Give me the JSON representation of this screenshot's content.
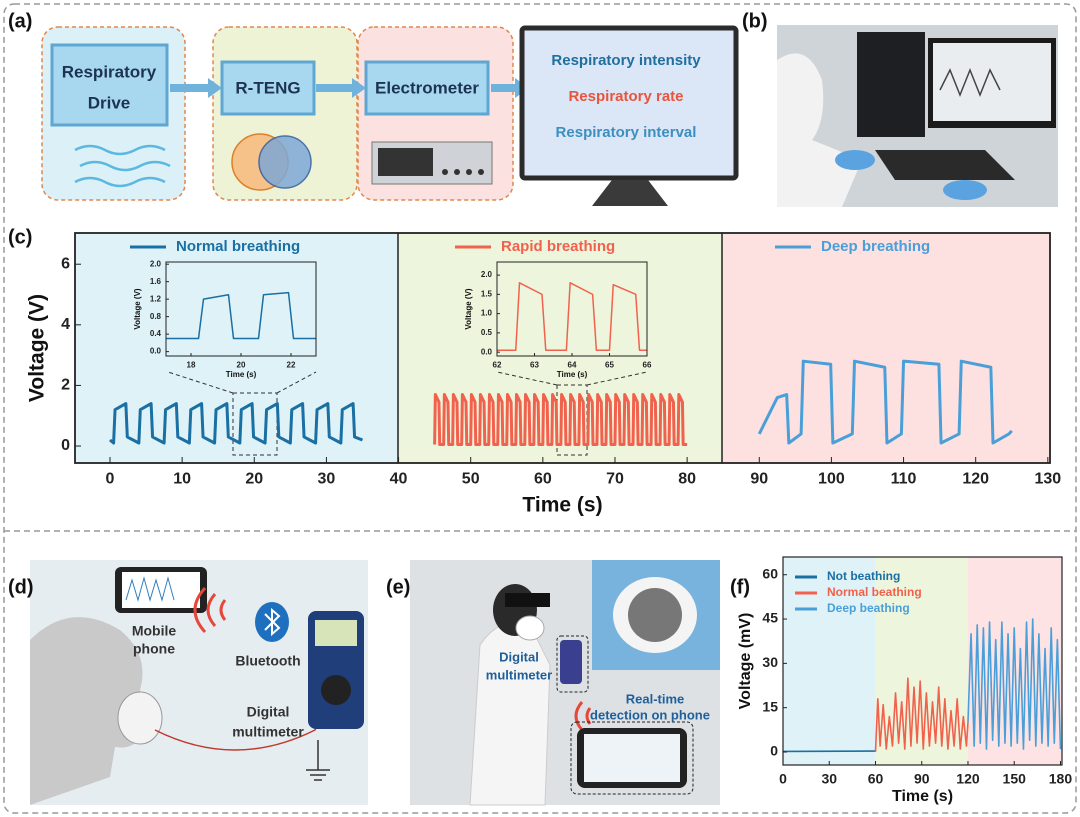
{
  "panels": {
    "labels": [
      "(a)",
      "(b)",
      "(c)",
      "(d)",
      "(e)",
      "(f)"
    ]
  },
  "flow": {
    "drive": [
      "Respiratory",
      "Drive"
    ],
    "teng": "R-TENG",
    "electrometer": "Electrometer",
    "outputs": [
      "Respiratory intensity",
      "Respiratory rate",
      "Respiratory interval"
    ]
  },
  "setup_d": {
    "phone": [
      "Mobile",
      "phone"
    ],
    "bluetooth": "Bluetooth",
    "multimeter": [
      "Digital",
      "multimeter"
    ]
  },
  "photo_e": {
    "multimeter": [
      "Digital",
      "multimeter"
    ],
    "detection": [
      "Real-time",
      "detection on phone"
    ]
  },
  "chart_data": [
    {
      "type": "line",
      "xlabel": "Time (s)",
      "ylabel": "Voltage (V)",
      "xlim": [
        -4.85,
        130.3
      ],
      "ylim": [
        -0.56,
        7.03
      ],
      "xticks": [
        0,
        10,
        20,
        30,
        40,
        50,
        60,
        70,
        80,
        90,
        100,
        110,
        120,
        130
      ],
      "yticks": [
        0,
        2,
        4,
        6
      ],
      "series": [
        {
          "name": "Normal breathing",
          "color": "#1a6fa3",
          "x": [
            0,
            0.5,
            0.7,
            2.2,
            2.4,
            4,
            4.2,
            5.7,
            5.9,
            7.5,
            7.7,
            9.2,
            9.4,
            11,
            11.2,
            12.7,
            12.9,
            14.5,
            14.7,
            16.2,
            16.4,
            18,
            18.2,
            19.7,
            19.9,
            21.5,
            21.7,
            23.2,
            23.4,
            25,
            25.2,
            26.7,
            26.9,
            28.5,
            28.7,
            30.2,
            30.4,
            32,
            32.2,
            33.7,
            33.9,
            35
          ],
          "values": [
            0.2,
            0.1,
            1.2,
            1.4,
            0.3,
            0.1,
            1.2,
            1.4,
            0.3,
            0.1,
            1.2,
            1.4,
            0.3,
            0.1,
            1.2,
            1.4,
            0.3,
            0.1,
            1.2,
            1.4,
            0.3,
            0.1,
            1.2,
            1.4,
            0.3,
            0.1,
            1.2,
            1.4,
            0.3,
            0.1,
            1.2,
            1.4,
            0.3,
            0.1,
            1.2,
            1.4,
            0.3,
            0.1,
            1.2,
            1.4,
            0.3,
            0.2
          ]
        },
        {
          "name": "Rapid breathing",
          "color": "#f0624d",
          "x": [
            45,
            45.1,
            45.6,
            45.7,
            46.25,
            46.35,
            46.85,
            46.95,
            47.5,
            47.6,
            48.1,
            48.2,
            48.75,
            48.85,
            49.35,
            49.45,
            50,
            50.1,
            50.6,
            50.7,
            51.25,
            51.35,
            51.85,
            51.95,
            52.5,
            52.6,
            53.1,
            53.2,
            53.75,
            53.85,
            54.35,
            54.45,
            55,
            55.1,
            55.6,
            55.7,
            56.25,
            56.35,
            56.85,
            56.95,
            57.5,
            57.6,
            58.1,
            58.2,
            58.75,
            58.85,
            59.35,
            59.45,
            60,
            60.1,
            60.6,
            60.7,
            61.25,
            61.35,
            61.85,
            61.95,
            62.5,
            62.6,
            63.1,
            63.2,
            63.75,
            63.85,
            64.35,
            64.45,
            65,
            65.1,
            65.6,
            65.7,
            66.25,
            66.35,
            66.85,
            66.95,
            67.5,
            67.6,
            68.1,
            68.2,
            68.75,
            68.85,
            69.35,
            69.45,
            70,
            70.1,
            70.6,
            70.7,
            71.25,
            71.35,
            71.85,
            71.95,
            72.5,
            72.6,
            73.1,
            73.2,
            73.75,
            73.85,
            74.35,
            74.45,
            75,
            75.1,
            75.6,
            75.7,
            76.25,
            76.35,
            76.85,
            76.95,
            77.5,
            77.6,
            78.1,
            78.2,
            78.75,
            78.85,
            79.35,
            79.45,
            80
          ],
          "values": [
            0.05,
            1.7,
            1.45,
            0.05,
            0.05,
            1.7,
            1.45,
            0.05,
            0.05,
            1.7,
            1.45,
            0.05,
            0.05,
            1.7,
            1.45,
            0.05,
            0.05,
            1.7,
            1.45,
            0.05,
            0.05,
            1.7,
            1.45,
            0.05,
            0.05,
            1.7,
            1.45,
            0.05,
            0.05,
            1.7,
            1.45,
            0.05,
            0.05,
            1.7,
            1.45,
            0.05,
            0.05,
            1.7,
            1.45,
            0.05,
            0.05,
            1.7,
            1.45,
            0.05,
            0.05,
            1.7,
            1.45,
            0.05,
            0.05,
            1.7,
            1.45,
            0.05,
            0.05,
            1.7,
            1.45,
            0.05,
            0.05,
            1.7,
            1.45,
            0.05,
            0.05,
            1.7,
            1.45,
            0.05,
            0.05,
            1.7,
            1.45,
            0.05,
            0.05,
            1.7,
            1.45,
            0.05,
            0.05,
            1.7,
            1.45,
            0.05,
            0.05,
            1.7,
            1.45,
            0.05,
            0.05,
            1.7,
            1.45,
            0.05,
            0.05,
            1.7,
            1.45,
            0.05,
            0.05,
            1.7,
            1.45,
            0.05,
            0.05,
            1.7,
            1.45,
            0.05,
            0.05,
            1.7,
            1.45,
            0.05,
            0.05,
            1.7,
            1.45,
            0.05,
            0.05,
            1.7,
            1.45,
            0.05,
            0.05,
            1.7,
            1.45,
            0.05,
            0.05
          ]
        },
        {
          "name": "Deep breathing",
          "color": "#4a9fd8",
          "x": [
            90,
            92.5,
            93.8,
            94.1,
            95.8,
            96.1,
            99.9,
            100.2,
            102.9,
            103.2,
            107.4,
            107.7,
            109.7,
            110,
            114.9,
            115.2,
            117.7,
            118,
            122.1,
            122.4,
            124.6,
            125
          ],
          "values": [
            0.4,
            1.6,
            1.7,
            0.1,
            0.4,
            2.8,
            2.7,
            0.1,
            0.4,
            2.8,
            2.6,
            0.1,
            0.4,
            2.8,
            2.7,
            0.1,
            0.4,
            2.8,
            2.6,
            0.1,
            0.4,
            0.5
          ]
        }
      ]
    },
    {
      "type": "line",
      "xlabel": "Time (s)",
      "ylabel": "Voltage (V)",
      "xlim": [
        17,
        23
      ],
      "ylim": [
        -0.1,
        2.05
      ],
      "xticks": [
        18,
        20,
        22
      ],
      "yticks": [
        {
          "value": 0,
          "label": "0.0"
        },
        0.4,
        0.8,
        1.2,
        1.6,
        {
          "value": 2,
          "label": "2.0"
        }
      ],
      "series": [
        {
          "color": "#1a6fa3",
          "x": [
            17,
            18.3,
            18.5,
            19.5,
            19.7,
            20.7,
            20.9,
            21.9,
            22.1,
            23
          ],
          "values": [
            0.3,
            0.3,
            1.2,
            1.3,
            0.3,
            0.3,
            1.3,
            1.35,
            0.3,
            0.3
          ]
        }
      ]
    },
    {
      "type": "line",
      "xlabel": "Time (s)",
      "ylabel": "Voltage (V)",
      "xlim": [
        62,
        66
      ],
      "ylim": [
        -0.1,
        2.34
      ],
      "xticks": [
        62,
        63,
        64,
        65,
        66
      ],
      "yticks": [
        {
          "value": 0,
          "label": "0.0"
        },
        0.5,
        {
          "value": 1,
          "label": "1.0"
        },
        1.5,
        {
          "value": 2,
          "label": "2.0"
        }
      ],
      "series": [
        {
          "color": "#f0624d",
          "x": [
            62,
            62.5,
            62.6,
            63.2,
            63.3,
            63.85,
            63.95,
            64.55,
            64.65,
            65,
            65.1,
            65.7,
            65.8,
            66
          ],
          "values": [
            0.05,
            0.05,
            1.8,
            1.5,
            0.05,
            0.05,
            1.8,
            1.5,
            0.05,
            0.05,
            1.75,
            1.5,
            0.05,
            0.05
          ]
        }
      ]
    },
    {
      "type": "line",
      "xlabel": "Time (s)",
      "ylabel": "Voltage (mV)",
      "xlim": [
        0,
        181
      ],
      "ylim": [
        -4.4,
        66
      ],
      "xticks": [
        0,
        30,
        60,
        90,
        120,
        150,
        180
      ],
      "yticks": [
        0,
        15,
        30,
        45,
        60
      ],
      "series": [
        {
          "name": "Not beathing",
          "color": "#1a6fa3",
          "x": [
            0,
            60
          ],
          "values": [
            0.2,
            0.3
          ]
        },
        {
          "name": "Normal beathing",
          "color": "#f0624d",
          "x": [
            60,
            61.5,
            63,
            65,
            67,
            69,
            71,
            73,
            75,
            77,
            79,
            81,
            83,
            85,
            87,
            89,
            91,
            93,
            95,
            97,
            99,
            101,
            103,
            105,
            107,
            109,
            111,
            113,
            115,
            117,
            119,
            120
          ],
          "values": [
            0,
            18,
            2,
            16,
            1,
            12,
            2,
            20,
            3,
            17,
            1,
            25,
            2,
            22,
            3,
            24,
            1,
            20,
            2,
            17,
            3,
            22,
            2,
            18,
            1,
            14,
            2,
            18,
            1,
            12,
            2,
            10
          ]
        },
        {
          "name": "Deep beathing",
          "color": "#4a9fd8",
          "x": [
            120,
            122,
            124,
            126,
            128,
            130,
            132,
            134,
            136,
            138,
            140,
            142,
            144,
            146,
            148,
            150,
            152,
            154,
            156,
            158,
            160,
            162,
            164,
            166,
            168,
            170,
            172,
            174,
            176,
            178,
            180
          ],
          "values": [
            10,
            40,
            2,
            43,
            3,
            42,
            1,
            44,
            4,
            38,
            2,
            44,
            3,
            40,
            2,
            42,
            3,
            35,
            1,
            44,
            4,
            45,
            2,
            40,
            3,
            35,
            2,
            42,
            3,
            38,
            1
          ]
        }
      ]
    }
  ]
}
